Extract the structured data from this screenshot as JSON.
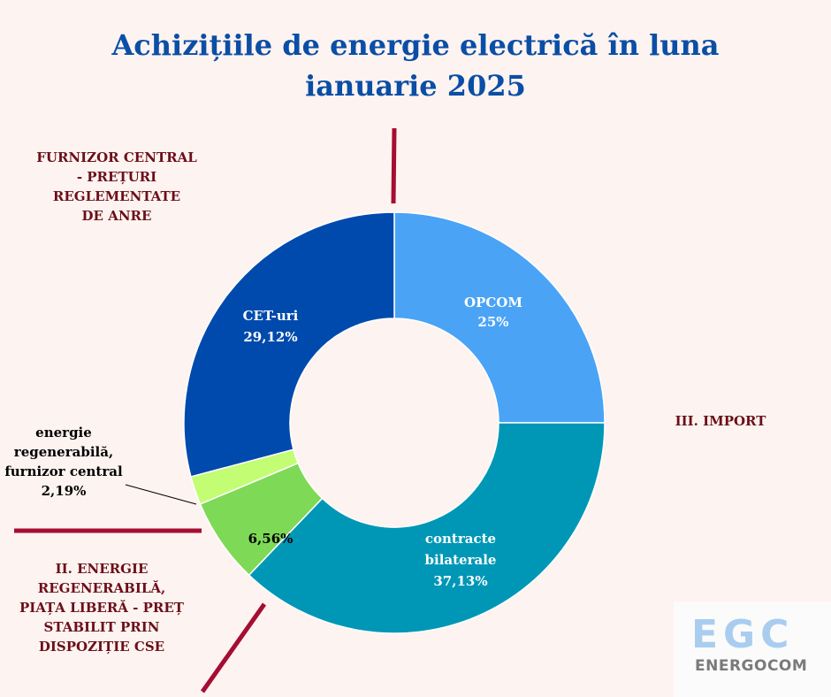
{
  "chart_data": {
    "type": "pie",
    "title_lines": [
      "Achizițiile de energie electrică în luna",
      "ianuarie 2025"
    ],
    "categories": [
      "OPCOM",
      "contracte bilaterale",
      "",
      "energie regenerabilă, furnizor central",
      "CET-uri"
    ],
    "values": [
      25,
      37.13,
      6.56,
      2.19,
      29.12
    ],
    "value_labels": [
      "25%",
      "37,13%",
      "6,56%",
      "2,19%",
      "29,12%"
    ],
    "colors": [
      "#4aa3f5",
      "#0097b6",
      "#7ed957",
      "#c2fd73",
      "#004aad"
    ],
    "groups": [
      "FURNIZOR CENTRAL - PREȚURI REGLEMENTATE DE ANRE",
      "III. IMPORT",
      "II. ENERGIE REGENERABILĂ, PIAȚA LIBERĂ - PREȚ STABILIT PRIN DISPOZIȚIE CSE"
    ],
    "divider_color": "#a50d33"
  },
  "label_lines": {
    "opcom": [
      "OPCOM",
      "25%"
    ],
    "bilaterale": [
      "contracte",
      "bilaterale",
      "37,13%"
    ],
    "regen_piata": [
      "6,56%"
    ],
    "regen_central": [
      "energie",
      "regenerabilă,",
      "furnizor central",
      "2,19%"
    ],
    "cet": [
      "CET-uri",
      "29,12%"
    ]
  },
  "group_lines": {
    "central": [
      "FURNIZOR CENTRAL",
      "- PREȚURI",
      "REGLEMENTATE",
      "DE ANRE"
    ],
    "import": [
      "III. IMPORT"
    ],
    "regen": [
      "II. ENERGIE",
      "REGENERABILĂ,",
      "PIAȚA LIBERĂ - PREȚ",
      "STABILIT PRIN",
      "DISPOZIȚIE CSE"
    ]
  },
  "logo": {
    "big": "EGC",
    "small": "ENERGOCOM",
    "color": "#a9cdef"
  }
}
